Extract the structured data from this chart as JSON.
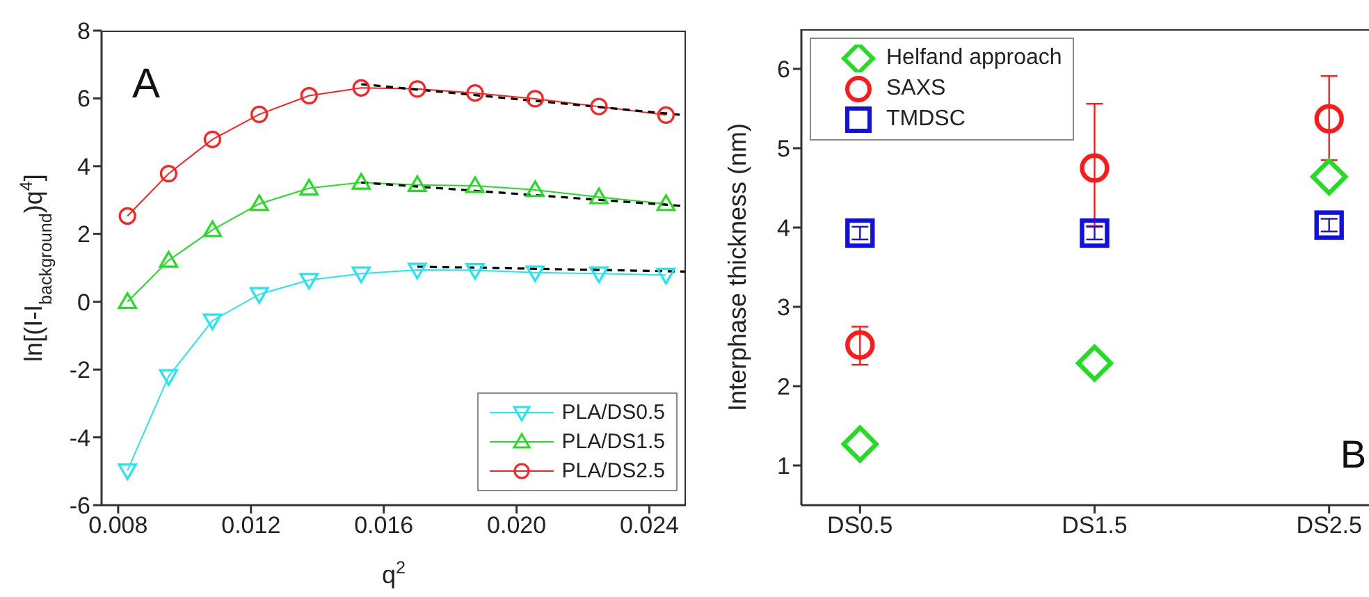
{
  "chart_data": [
    {
      "type": "line",
      "xlabel": "q$^{2}$",
      "ylabel": "ln[(I-I$_{background}$)q$^{4}$]",
      "annotations": [
        "A"
      ],
      "xlim": [
        0.0075,
        0.0251
      ],
      "xticks": [
        0.008,
        0.012,
        0.016,
        {
          "value": 0.02,
          "label": "0.020"
        },
        0.024
      ],
      "ylim": [
        -6,
        8
      ],
      "yticks": [
        -6,
        -4,
        -2,
        0,
        2,
        4,
        6,
        8
      ],
      "legend": "bottom right",
      "line_style": "solid",
      "x": [
        0.00828,
        0.00952,
        0.01084,
        0.01225,
        0.01375,
        0.01532,
        0.01701,
        0.01875,
        0.02056,
        0.02248,
        0.0245
      ],
      "series": [
        {
          "name": "PLA/DS0.5",
          "color": "#22e5f2",
          "marker": "triangle-down",
          "values": [
            -4.98,
            -2.2,
            -0.56,
            0.22,
            0.64,
            0.83,
            0.94,
            0.93,
            0.86,
            0.83,
            0.79
          ]
        },
        {
          "name": "PLA/DS1.5",
          "color": "#22dd22",
          "marker": "triangle",
          "values": [
            0.0,
            1.22,
            2.12,
            2.89,
            3.35,
            3.52,
            3.45,
            3.42,
            3.3,
            3.09,
            2.89
          ]
        },
        {
          "name": "PLA/DS2.5",
          "color": "#ff2020",
          "marker": "circle",
          "values": [
            2.53,
            3.78,
            4.79,
            5.53,
            6.08,
            6.31,
            6.28,
            6.16,
            5.99,
            5.76,
            5.51
          ]
        },
        {
          "type": "line",
          "color": "#000000",
          "marker": "none",
          "line_style": "dashed",
          "x": [
            0.01532,
            0.0251
          ],
          "values": [
            6.42,
            5.5
          ]
        },
        {
          "type": "line",
          "color": "#000000",
          "marker": "none",
          "line_style": "dashed",
          "x": [
            0.01532,
            0.0251
          ],
          "values": [
            3.52,
            2.82
          ]
        },
        {
          "type": "line",
          "color": "#000000",
          "marker": "none",
          "line_style": "dashed",
          "x": [
            0.01701,
            0.0251
          ],
          "values": [
            1.04,
            0.89
          ]
        }
      ]
    },
    {
      "type": "scatter",
      "ylabel": "Interphase thickness (nm)",
      "annotations": [
        "B"
      ],
      "categories": [
        "DS0.5",
        "DS1.5",
        "DS2.5"
      ],
      "ylim": [
        0.5,
        6.5
      ],
      "yticks": [
        1,
        2,
        3,
        4,
        5,
        6
      ],
      "legend": "top left",
      "series": [
        {
          "name": "Helfand approach",
          "color": "#22dd22",
          "marker": "diamond",
          "values": [
            1.27,
            2.29,
            4.64
          ]
        },
        {
          "name": "SAXS",
          "color": "#ff1a1a",
          "marker": "circle",
          "values": [
            2.52,
            4.75,
            5.37
          ],
          "errors": [
            [
              2.27,
              2.75
            ],
            [
              4.02,
              5.56
            ],
            [
              4.85,
              5.91
            ]
          ]
        },
        {
          "name": "TMDSC",
          "color": "#1010e0",
          "marker": "square",
          "values": [
            3.93,
            3.93,
            4.03
          ],
          "errors": [
            0.08,
            0.08,
            0.08
          ]
        }
      ]
    }
  ]
}
